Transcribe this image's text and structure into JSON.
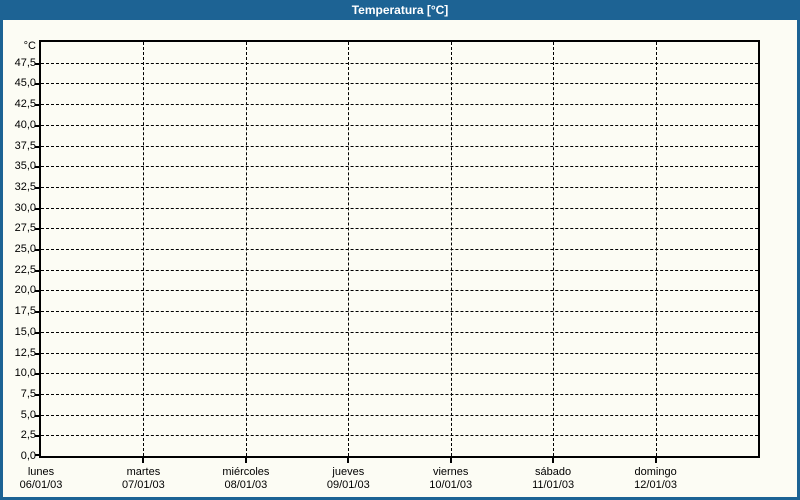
{
  "window_title": "Temperatura [°C]",
  "colors": {
    "titlebar_bg": "#1d6394",
    "titlebar_text": "#ffffff",
    "window_border": "#1d6394",
    "background": "#fcfcf4",
    "grid": "#000000",
    "axis": "#000000",
    "label_text": "#000000"
  },
  "chart_data": {
    "type": "line",
    "title": "Temperatura [°C]",
    "y_unit_label": "°C",
    "ylim": [
      0,
      50
    ],
    "y_tick_step": 2.5,
    "y_tick_labels": [
      "0,0",
      "2,5",
      "5,0",
      "7,5",
      "10,0",
      "12,5",
      "15,0",
      "17,5",
      "20,0",
      "22,5",
      "25,0",
      "27,5",
      "30,0",
      "32,5",
      "35,0",
      "37,5",
      "40,0",
      "42,5",
      "45,0",
      "47,5"
    ],
    "x_ticks": [
      {
        "day": "lunes",
        "date": "06/01/03"
      },
      {
        "day": "martes",
        "date": "07/01/03"
      },
      {
        "day": "miércoles",
        "date": "08/01/03"
      },
      {
        "day": "jueves",
        "date": "09/01/03"
      },
      {
        "day": "viernes",
        "date": "10/01/03"
      },
      {
        "day": "sábado",
        "date": "11/01/03"
      },
      {
        "day": "domingo",
        "date": "12/01/03"
      }
    ],
    "x_span_days": 7,
    "grid": "dashed",
    "legend": null,
    "series": []
  }
}
